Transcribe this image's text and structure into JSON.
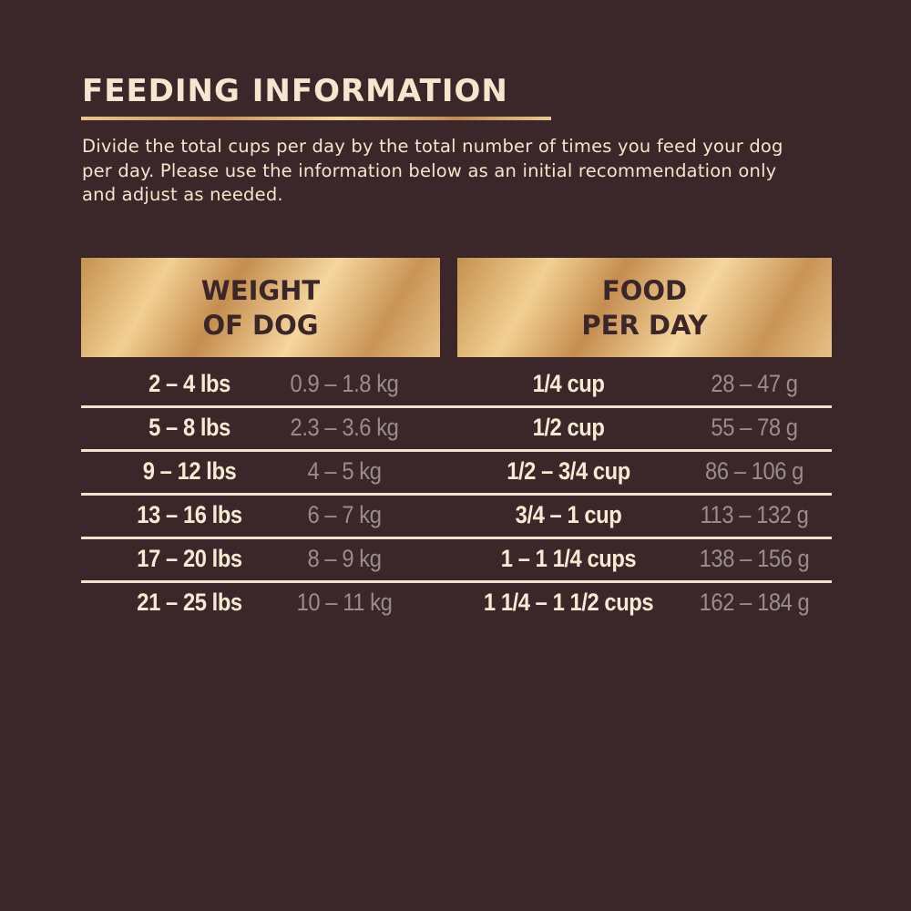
{
  "title": "FEEDING INFORMATION",
  "intro": "Divide the total cups per day by the total number of times you feed your dog per day. Please use the information below as an initial recommendation only and adjust as needed.",
  "headers": {
    "weight_line1": "WEIGHT",
    "weight_line2": "OF DOG",
    "food_line1": "FOOD",
    "food_line2": "PER DAY"
  },
  "rows": [
    {
      "lbs": "2 – 4 lbs",
      "kg": "0.9 – 1.8 kg",
      "cups": "1/4 cup",
      "grams": "28 – 47 g"
    },
    {
      "lbs": "5 – 8 lbs",
      "kg": "2.3 – 3.6 kg",
      "cups": "1/2 cup",
      "grams": "55 – 78 g"
    },
    {
      "lbs": "9 – 12 lbs",
      "kg": "4 – 5 kg",
      "cups": "1/2 – 3/4 cup",
      "grams": "86 – 106 g"
    },
    {
      "lbs": "13 – 16 lbs",
      "kg": "6 – 7 kg",
      "cups": "3/4 – 1 cup",
      "grams": "113 – 132 g"
    },
    {
      "lbs": "17 – 20 lbs",
      "kg": "8 – 9 kg",
      "cups": "1 – 1 1/4 cups",
      "grams": "138 – 156 g"
    },
    {
      "lbs": "21 – 25 lbs",
      "kg": "10 – 11 kg",
      "cups": "1 1/4 – 1 1/2 cups",
      "grams": "162 – 184 g"
    }
  ],
  "colors": {
    "background": "#3b2729",
    "gold": "#d8a968",
    "cream": "#f7ead4",
    "muted": "#9a8d89"
  }
}
